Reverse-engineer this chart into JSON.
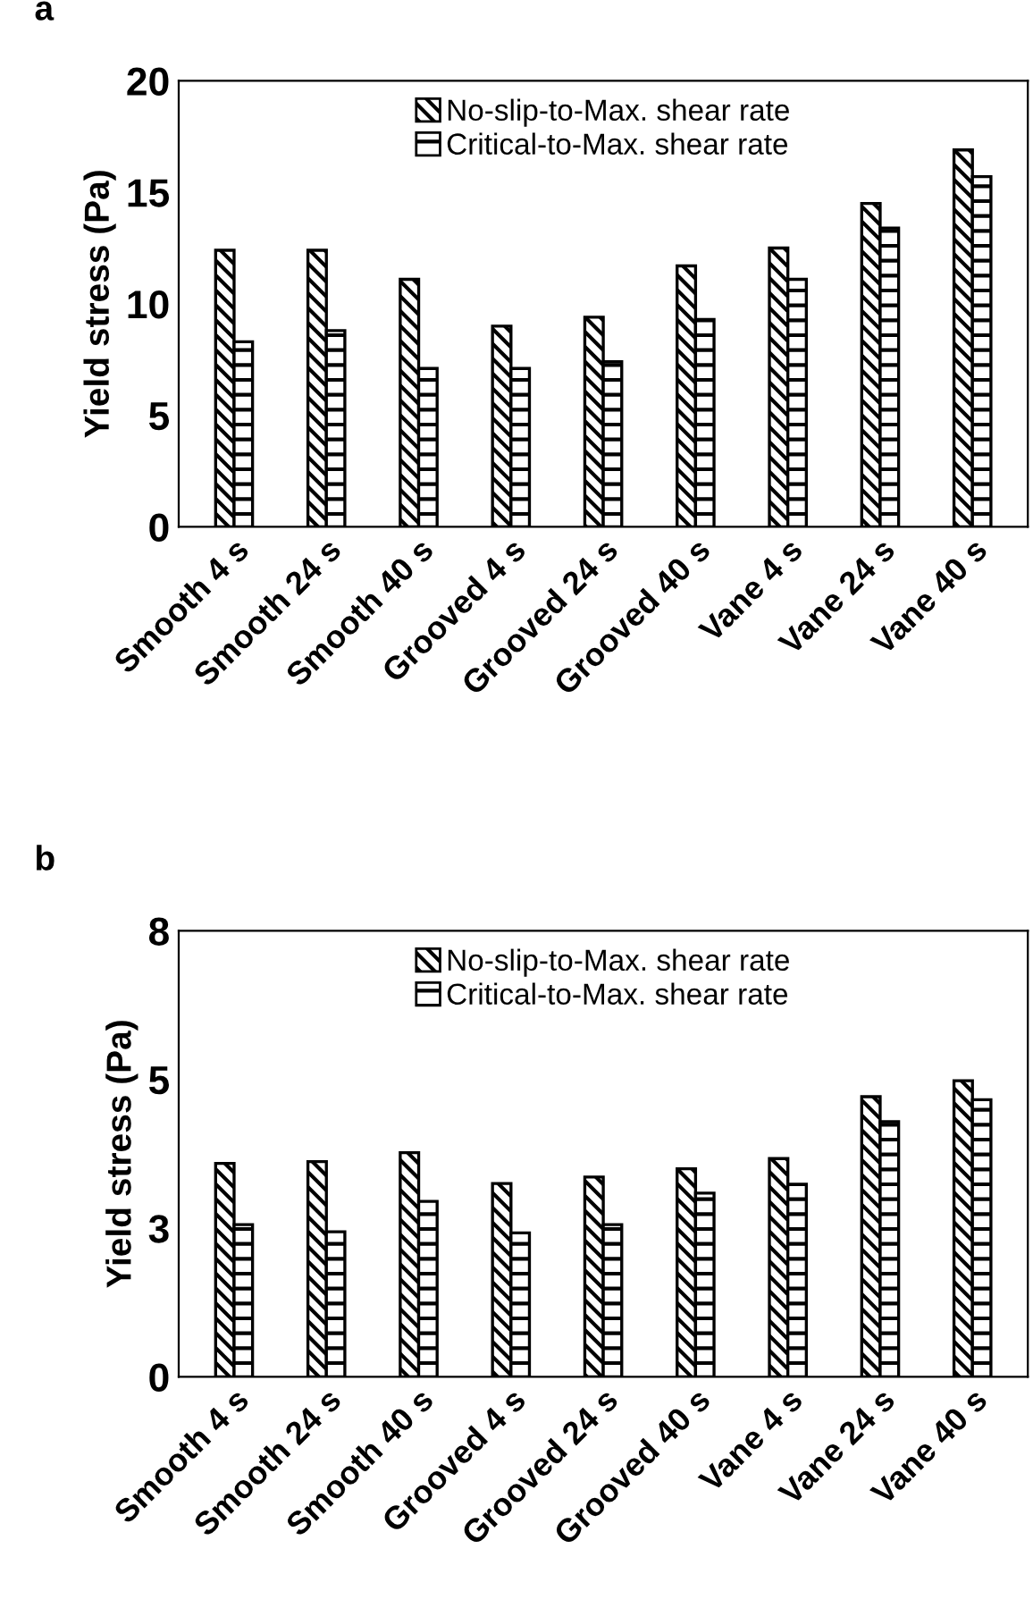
{
  "chart_data": [
    {
      "type": "bar",
      "annotations": [
        "a"
      ],
      "ylabel": "Yield stress (Pa)",
      "categories": [
        "Smooth 4 s",
        "Smooth 24 s",
        "Smooth 40 s",
        "Grooved 4 s",
        "Grooved 24 s",
        "Grooved 40 s",
        "Vane 4 s",
        "Vane 24 s",
        "Vane 40 s"
      ],
      "series": [
        {
          "name": "No-slip-to-Max. shear rate",
          "color": "#000000",
          "values": [
            12.4,
            12.4,
            11.1,
            9.0,
            9.4,
            11.7,
            12.5,
            14.5,
            16.9
          ]
        },
        {
          "name": "Critical-to-Max. shear rate",
          "color": "#000000",
          "values": [
            8.3,
            8.8,
            7.1,
            7.1,
            7.4,
            9.3,
            11.1,
            13.4,
            15.7
          ]
        }
      ],
      "ylim": [
        0,
        20
      ],
      "yticks": [
        0,
        5,
        10,
        15,
        20
      ],
      "grid": false,
      "legend": "top"
    },
    {
      "type": "bar",
      "annotations": [
        "b"
      ],
      "ylabel": "Yield stress (Pa)",
      "categories": [
        "Smooth 4 s",
        "Smooth 24 s",
        "Smooth 40 s",
        "Grooved 4 s",
        "Grooved 24 s",
        "Grooved 40 s",
        "Vane 4 s",
        "Vane 24 s",
        "Vane 40 s"
      ],
      "series": [
        {
          "name": "No-slip-to-Max. shear rate",
          "color": "#000000",
          "values": [
            3.59,
            3.62,
            3.77,
            3.25,
            3.36,
            3.5,
            3.67,
            4.71,
            4.98
          ]
        },
        {
          "name": "Critical-to-Max. shear rate",
          "color": "#000000",
          "values": [
            2.56,
            2.44,
            2.95,
            2.42,
            2.56,
            3.09,
            3.24,
            4.29,
            4.66
          ]
        }
      ],
      "ylim": [
        0,
        7.5
      ],
      "yticks": [
        0,
        {
          "value": 2.5,
          "label": "3"
        },
        5,
        {
          "value": 7.5,
          "label": "8"
        }
      ],
      "grid": false,
      "legend": "top"
    }
  ]
}
